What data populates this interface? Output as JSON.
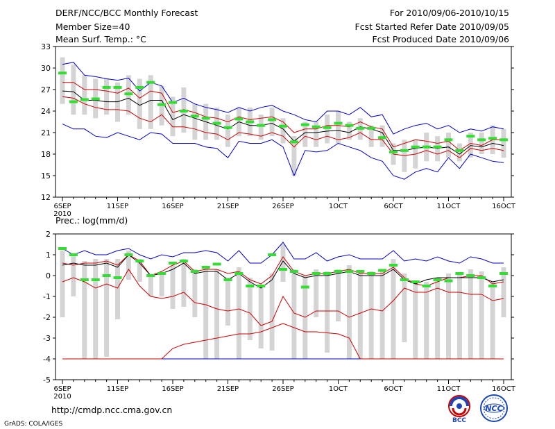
{
  "header": {
    "title": "DERF/NCC/BCC Monthly Forecast",
    "member_size": "Member Size=40",
    "variable": "Mean Surf. Temp.: °C",
    "period": "For 2010/09/06-2010/10/15",
    "fcst_start": "Fcst Started Refer Date 2010/09/05",
    "fcst_produced": "Fcst Produced Date 2010/09/06"
  },
  "footer": {
    "url": "http://cmdp.ncc.cma.gov.cn",
    "credit": "GrADS: COLA/IGES",
    "logo_bcc": "BCC",
    "logo_ncc": "NCC"
  },
  "colors": {
    "box": "#d4d4d4",
    "max_line": "#0000cc",
    "min_line": "#0000cc",
    "pct_line": "#cc0000",
    "median": "#000000",
    "obs_marker": "#33dd33"
  },
  "chart_data": [
    {
      "type": "box",
      "title": "Mean Surf. Temp.: °C",
      "ylim": [
        12,
        33
      ],
      "yticks": [
        12,
        15,
        18,
        21,
        24,
        27,
        30,
        33
      ],
      "x_day_range": [
        0,
        40
      ],
      "xticks": [
        {
          "day": 0,
          "label": "6SEP",
          "sub": "2010"
        },
        {
          "day": 5,
          "label": "11SEP"
        },
        {
          "day": 10,
          "label": "16SEP"
        },
        {
          "day": 15,
          "label": "21SEP"
        },
        {
          "day": 20,
          "label": "26SEP"
        },
        {
          "day": 25,
          "label": "1OCT"
        },
        {
          "day": 30,
          "label": "6OCT"
        },
        {
          "day": 35,
          "label": "11OCT"
        },
        {
          "day": 40,
          "label": "16OCT"
        }
      ],
      "series": [
        {
          "name": "max",
          "values": [
            30.5,
            30.8,
            29.0,
            28.8,
            28.5,
            28.3,
            28.6,
            26.8,
            28.0,
            27.5,
            25.2,
            25.8,
            25.0,
            24.5,
            24.2,
            23.8,
            24.5,
            24.0,
            24.5,
            24.8,
            24.0,
            23.5,
            22.8,
            22.5,
            24.0,
            24.0,
            23.5,
            24.5,
            23.2,
            23.5,
            20.8,
            21.5,
            22.0,
            22.3,
            21.5,
            22.0,
            21.0,
            21.5,
            21.2,
            21.8,
            21.5
          ]
        },
        {
          "name": "p90",
          "values": [
            28.0,
            28.0,
            27.0,
            27.0,
            26.8,
            26.5,
            27.2,
            25.8,
            26.8,
            26.5,
            23.8,
            24.2,
            23.8,
            23.2,
            23.0,
            22.5,
            23.2,
            22.8,
            23.0,
            23.2,
            22.5,
            21.0,
            21.5,
            21.5,
            22.0,
            22.0,
            21.8,
            22.5,
            21.8,
            21.5,
            19.0,
            19.5,
            20.0,
            19.8,
            19.5,
            19.8,
            18.5,
            19.5,
            19.2,
            20.0,
            20.0
          ]
        },
        {
          "name": "median",
          "values": [
            26.8,
            26.7,
            25.5,
            25.5,
            25.3,
            25.3,
            25.8,
            24.8,
            25.5,
            25.5,
            22.8,
            23.5,
            23.0,
            22.5,
            22.0,
            21.5,
            22.5,
            22.0,
            22.0,
            22.3,
            21.5,
            19.8,
            21.0,
            21.0,
            21.2,
            21.3,
            21.0,
            21.8,
            21.5,
            21.0,
            18.5,
            18.5,
            18.8,
            19.0,
            18.8,
            19.0,
            18.0,
            19.2,
            19.0,
            19.5,
            19.2
          ]
        },
        {
          "name": "p10",
          "values": [
            26.0,
            25.8,
            25.0,
            24.5,
            24.2,
            24.2,
            24.0,
            23.0,
            22.5,
            23.5,
            21.8,
            21.8,
            21.5,
            21.0,
            20.8,
            20.0,
            21.0,
            20.8,
            20.5,
            21.0,
            20.5,
            19.0,
            20.5,
            20.0,
            20.5,
            20.0,
            20.3,
            21.0,
            20.0,
            20.0,
            18.0,
            17.8,
            18.0,
            18.5,
            18.0,
            18.5,
            17.5,
            18.8,
            18.5,
            18.8,
            18.5
          ]
        },
        {
          "name": "min",
          "values": [
            22.2,
            21.5,
            21.5,
            20.5,
            20.3,
            21.0,
            20.5,
            20.0,
            21.0,
            20.8,
            19.5,
            19.5,
            19.5,
            19.0,
            18.8,
            17.5,
            19.8,
            19.5,
            19.5,
            20.0,
            19.0,
            15.0,
            18.5,
            18.3,
            18.5,
            19.5,
            19.0,
            18.5,
            17.5,
            17.0,
            15.0,
            14.5,
            15.5,
            16.0,
            15.5,
            17.5,
            16.0,
            18.0,
            17.5,
            17.0,
            16.8
          ]
        },
        {
          "name": "box_low",
          "values": [
            25.0,
            23.5,
            23.5,
            23.0,
            23.5,
            22.5,
            23.5,
            21.5,
            21.5,
            22.0,
            20.5,
            21.0,
            20.0,
            20.0,
            20.0,
            19.0,
            20.5,
            20.5,
            20.0,
            20.5,
            19.5,
            15.0,
            19.0,
            19.0,
            19.5,
            19.5,
            20.0,
            20.0,
            19.0,
            19.0,
            16.5,
            15.5,
            16.0,
            17.0,
            17.0,
            17.5,
            17.0,
            17.5,
            18.0,
            18.0,
            17.5
          ]
        },
        {
          "name": "box_high",
          "values": [
            31.5,
            30.5,
            29.0,
            28.5,
            28.5,
            28.0,
            29.0,
            28.5,
            29.0,
            27.5,
            26.0,
            27.3,
            25.0,
            25.0,
            24.5,
            23.5,
            24.5,
            24.5,
            23.5,
            24.5,
            23.0,
            20.5,
            22.5,
            22.5,
            23.5,
            24.0,
            22.5,
            23.0,
            22.0,
            22.0,
            19.5,
            20.0,
            20.0,
            21.0,
            20.5,
            21.0,
            19.5,
            21.0,
            21.0,
            22.0,
            21.5
          ]
        },
        {
          "name": "observed",
          "values": [
            29.3,
            25.3,
            25.6,
            25.7,
            27.3,
            27.3,
            26.4,
            27.3,
            28.0,
            24.9,
            25.2,
            24.0,
            23.3,
            23.0,
            22.3,
            21.7,
            22.9,
            22.5,
            22.0,
            22.8,
            21.9,
            19.7,
            22.1,
            21.8,
            21.7,
            22.3,
            22.0,
            21.6,
            21.6,
            20.3,
            18.3,
            18.5,
            19.0,
            19.0,
            19.0,
            20.0,
            18.5,
            20.5,
            20.0,
            20.2,
            20.0
          ]
        }
      ]
    },
    {
      "type": "box",
      "title": "Prec.: log(mm/d)",
      "ylim": [
        -5,
        2
      ],
      "yticks": [
        -5,
        -4,
        -3,
        -2,
        -1,
        0,
        1,
        2
      ],
      "x_day_range": [
        0,
        40
      ],
      "xticks": [
        {
          "day": 0,
          "label": "6SEP",
          "sub": "2010"
        },
        {
          "day": 5,
          "label": "11SEP"
        },
        {
          "day": 10,
          "label": "16SEP"
        },
        {
          "day": 15,
          "label": "21SEP"
        },
        {
          "day": 20,
          "label": "26SEP"
        },
        {
          "day": 25,
          "label": "1OCT"
        },
        {
          "day": 30,
          "label": "6OCT"
        },
        {
          "day": 35,
          "label": "11OCT"
        },
        {
          "day": 40,
          "label": "16OCT"
        }
      ],
      "series": [
        {
          "name": "max",
          "values": [
            1.3,
            1.0,
            1.2,
            1.0,
            1.0,
            1.2,
            1.3,
            1.0,
            0.8,
            1.0,
            0.9,
            1.1,
            1.1,
            1.2,
            1.1,
            0.7,
            1.2,
            0.6,
            0.6,
            1.0,
            1.6,
            0.8,
            0.8,
            1.1,
            0.7,
            0.9,
            1.0,
            0.8,
            0.8,
            0.8,
            1.2,
            0.7,
            0.8,
            0.7,
            0.9,
            0.7,
            0.6,
            0.9,
            0.8,
            0.6,
            0.6
          ]
        },
        {
          "name": "p90",
          "values": [
            0.6,
            0.5,
            0.6,
            0.6,
            0.7,
            0.5,
            1.0,
            0.7,
            0.0,
            0.2,
            0.5,
            0.7,
            0.2,
            0.3,
            0.3,
            0.1,
            0.2,
            -0.2,
            -0.4,
            0.0,
            0.9,
            0.2,
            0.0,
            0.1,
            0.1,
            0.2,
            0.3,
            0.1,
            0.1,
            0.1,
            0.4,
            -0.1,
            -0.4,
            -0.5,
            -0.3,
            -0.1,
            -0.1,
            0.0,
            0.0,
            -0.4,
            -0.3
          ]
        },
        {
          "name": "median",
          "values": [
            0.5,
            0.6,
            0.5,
            0.5,
            0.6,
            0.4,
            1.0,
            0.6,
            0.0,
            0.1,
            0.3,
            0.6,
            0.1,
            0.2,
            0.2,
            -0.2,
            0.1,
            -0.3,
            -0.6,
            -0.2,
            0.7,
            0.1,
            -0.1,
            0.0,
            0.0,
            0.1,
            0.2,
            0.0,
            0.0,
            0.0,
            0.3,
            -0.2,
            -0.4,
            -0.2,
            -0.1,
            -0.1,
            -0.1,
            -0.1,
            -0.1,
            -0.3,
            -0.2
          ]
        },
        {
          "name": "p10",
          "values": [
            -0.3,
            -0.1,
            -0.3,
            -0.6,
            -0.4,
            -0.6,
            0.3,
            -0.5,
            -1.0,
            -1.1,
            -1.0,
            -0.8,
            -1.3,
            -1.4,
            -1.6,
            -1.7,
            -1.6,
            -1.8,
            -2.4,
            -2.2,
            -1.0,
            -1.8,
            -2.0,
            -1.7,
            -1.7,
            -1.7,
            -2.0,
            -1.8,
            -1.6,
            -1.7,
            -1.2,
            -0.6,
            -0.8,
            -0.8,
            -0.6,
            -0.8,
            -0.8,
            -0.9,
            -0.9,
            -1.2,
            -1.1
          ]
        },
        {
          "name": "p_low",
          "values": [
            -4.0,
            -4.0,
            -4.0,
            -4.0,
            -4.0,
            -4.0,
            -4.0,
            -4.0,
            -4.0,
            -4.0,
            -3.5,
            -3.3,
            -3.2,
            -3.1,
            -3.0,
            -2.9,
            -2.8,
            -2.8,
            -2.7,
            -2.5,
            -2.3,
            -2.5,
            -2.7,
            -2.7,
            -2.75,
            -2.8,
            -3.0,
            -4.0,
            -4.0,
            -4.0,
            -4.0,
            -4.0,
            -4.0,
            -4.0,
            -4.0,
            -4.0,
            -4.0,
            -4.0,
            -4.0,
            -4.0,
            -4.0
          ]
        },
        {
          "name": "min",
          "values": [
            -4.0,
            -4.0,
            -4.0,
            -4.0,
            -4.0,
            -4.0,
            -4.0,
            -4.0,
            -4.0,
            -4.0,
            -4.0,
            -4.0,
            -4.0,
            -4.0,
            -4.0,
            -4.0,
            -4.0,
            -4.0,
            -4.0,
            -4.0,
            -4.0,
            -4.0,
            -4.0,
            -4.0,
            -4.0,
            -4.0,
            -4.0,
            -4.0,
            -4.0,
            -4.0,
            -4.0,
            -4.0,
            -4.0,
            -4.0,
            -4.0,
            -4.0,
            -4.0,
            -4.0,
            -4.0,
            -4.0,
            -4.0
          ]
        },
        {
          "name": "box_low",
          "values": [
            -2.0,
            -1.0,
            -4.0,
            -4.0,
            -3.9,
            -2.1,
            -0.2,
            -0.3,
            -1.0,
            -1.0,
            -1.6,
            -1.5,
            -2.0,
            -4.0,
            -4.0,
            -2.4,
            -4.0,
            -3.1,
            -3.5,
            -3.6,
            -0.3,
            -4.0,
            -4.0,
            -2.0,
            -3.7,
            -2.2,
            -4.0,
            -4.0,
            -4.0,
            -4.0,
            -4.0,
            -3.2,
            -4.0,
            -4.0,
            -4.0,
            -4.0,
            -4.0,
            -4.0,
            -4.0,
            -4.0,
            -2.0
          ]
        },
        {
          "name": "box_high",
          "values": [
            1.2,
            1.0,
            0.7,
            0.8,
            0.8,
            0.8,
            1.2,
            0.8,
            0.0,
            0.1,
            0.5,
            0.8,
            0.3,
            0.4,
            0.3,
            -0.1,
            0.4,
            -0.1,
            -0.5,
            0.1,
            1.5,
            0.3,
            0.0,
            0.3,
            0.2,
            0.3,
            0.5,
            0.2,
            0.2,
            0.2,
            0.8,
            0.1,
            -0.3,
            -0.3,
            -0.1,
            0.1,
            0.1,
            0.3,
            0.2,
            -0.3,
            0.4
          ]
        },
        {
          "name": "observed",
          "values": [
            1.3,
            1.0,
            -0.2,
            -0.2,
            0.0,
            -0.1,
            1.0,
            0.7,
            0.0,
            0.1,
            0.6,
            0.7,
            0.2,
            0.4,
            0.55,
            -0.2,
            0.1,
            -0.5,
            -0.5,
            1.0,
            0.3,
            0.2,
            -0.55,
            0.1,
            0.1,
            0.2,
            0.2,
            0.2,
            0.1,
            0.25,
            0.5,
            -0.2,
            -0.3,
            -0.5,
            -0.2,
            -0.25,
            0.1,
            0.0,
            -0.1,
            -0.5,
            0.1
          ]
        }
      ]
    }
  ]
}
